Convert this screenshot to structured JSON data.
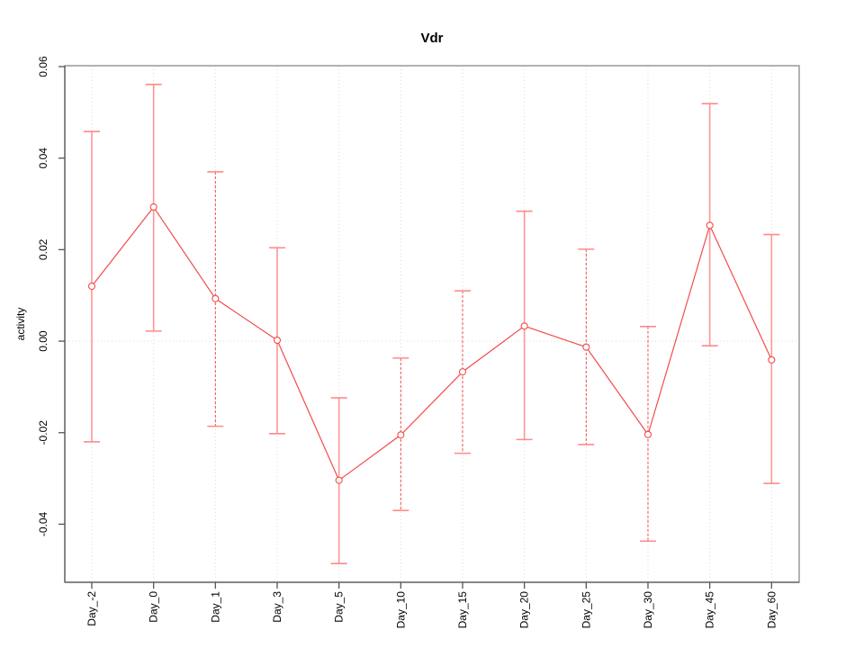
{
  "page": {
    "background": "#ffffff"
  },
  "colors": {
    "line": "#f24b4b",
    "marker_fill": "#ffffff",
    "errorbar_solid": "#ff9595",
    "errorbar_cap": "#ff8a8a",
    "frame": "#999999",
    "axis": "#6e6e6e",
    "tick": "#555555",
    "grid": "#d9d9d9",
    "text": "#000000"
  },
  "chart_data": {
    "type": "line",
    "title": "Vdr",
    "xlabel": "",
    "ylabel": "activity",
    "legend": "none",
    "grid": {
      "vertical": "dotted line at each category",
      "horizontal": "dotted line at y=0 only"
    },
    "ylim": [
      -0.0527,
      0.0602
    ],
    "yticks": [
      {
        "value": -0.04,
        "label": "-0.04"
      },
      {
        "value": -0.02,
        "label": "-0.02"
      },
      {
        "value": 0.0,
        "label": "0.00"
      },
      {
        "value": 0.02,
        "label": "0.02"
      },
      {
        "value": 0.04,
        "label": "0.04"
      },
      {
        "value": 0.06,
        "label": "0.06"
      }
    ],
    "categories": [
      "Day_-2",
      "Day_0",
      "Day_1",
      "Day_3",
      "Day_5",
      "Day_10",
      "Day_15",
      "Day_20",
      "Day_25",
      "Day_30",
      "Day_45",
      "Day_60"
    ],
    "series": [
      {
        "name": "activity",
        "marker": "open-circle",
        "values": [
          0.012,
          0.0293,
          0.0093,
          0.0002,
          -0.0304,
          -0.0205,
          -0.0067,
          0.0033,
          -0.0013,
          -0.0204,
          0.0253,
          -0.0041
        ]
      }
    ],
    "error_low": [
      -0.022,
      0.0022,
      -0.0186,
      -0.0202,
      -0.0486,
      -0.037,
      -0.0245,
      -0.0215,
      -0.0226,
      -0.0437,
      -0.001,
      -0.0311
    ],
    "error_high": [
      0.0458,
      0.0561,
      0.037,
      0.0204,
      -0.0124,
      -0.0037,
      0.011,
      0.0284,
      0.0201,
      0.0032,
      0.0519,
      0.0233
    ],
    "errorbar_styles": [
      "solid",
      "solid",
      "dashed",
      "solid",
      "solid",
      "dashed",
      "dashed",
      "solid",
      "dashed",
      "dashed",
      "solid",
      "solid"
    ]
  }
}
